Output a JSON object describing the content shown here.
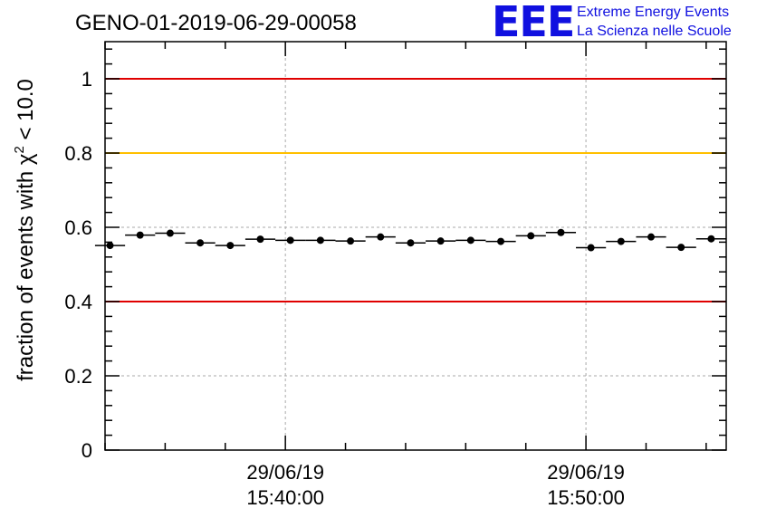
{
  "chart_data": {
    "type": "scatter",
    "title": "GENO-01-2019-06-29-00058",
    "ylabel_prefix": "fraction of events with ",
    "ylabel_symbol": "χ",
    "ylabel_superscript": "2",
    "ylabel_suffix": " < 10.0",
    "ylim": [
      0,
      1.1
    ],
    "yticks": [
      {
        "value": 0,
        "label": "0"
      },
      {
        "value": 0.2,
        "label": "0.2"
      },
      {
        "value": 0.4,
        "label": "0.4"
      },
      {
        "value": 0.6,
        "label": "0.6"
      },
      {
        "value": 0.8,
        "label": "0.8"
      },
      {
        "value": 1,
        "label": "1"
      }
    ],
    "x_unit": "minutes",
    "xlim": [
      "15:34:00",
      "15:54:40"
    ],
    "xticks": [
      {
        "time": "15:40:00",
        "date": "29/06/19"
      },
      {
        "time": "15:50:00",
        "date": "29/06/19"
      }
    ],
    "x_minor_tick_minutes": 2,
    "bin_width_minutes": 1,
    "grid": true,
    "reference_lines": [
      {
        "y": 1.0,
        "color": "#e00000"
      },
      {
        "y": 0.8,
        "color": "#ffc000"
      },
      {
        "y": 0.4,
        "color": "#e00000"
      }
    ],
    "points": [
      {
        "x": "15:34:10",
        "y": 0.551
      },
      {
        "x": "15:35:10",
        "y": 0.579
      },
      {
        "x": "15:36:10",
        "y": 0.584
      },
      {
        "x": "15:37:10",
        "y": 0.558
      },
      {
        "x": "15:38:10",
        "y": 0.551
      },
      {
        "x": "15:39:10",
        "y": 0.568
      },
      {
        "x": "15:40:10",
        "y": 0.565
      },
      {
        "x": "15:41:10",
        "y": 0.565
      },
      {
        "x": "15:42:10",
        "y": 0.563
      },
      {
        "x": "15:43:10",
        "y": 0.574
      },
      {
        "x": "15:44:10",
        "y": 0.558
      },
      {
        "x": "15:45:10",
        "y": 0.563
      },
      {
        "x": "15:46:10",
        "y": 0.565
      },
      {
        "x": "15:47:10",
        "y": 0.562
      },
      {
        "x": "15:48:10",
        "y": 0.577
      },
      {
        "x": "15:49:10",
        "y": 0.586
      },
      {
        "x": "15:50:10",
        "y": 0.545
      },
      {
        "x": "15:51:10",
        "y": 0.562
      },
      {
        "x": "15:52:10",
        "y": 0.574
      },
      {
        "x": "15:53:10",
        "y": 0.546
      },
      {
        "x": "15:54:10",
        "y": 0.569
      }
    ]
  },
  "logo": {
    "mark": "EEE",
    "line1": "Extreme Energy Events",
    "line2": "La Scienza nelle Scuole",
    "color": "#1010e0"
  }
}
